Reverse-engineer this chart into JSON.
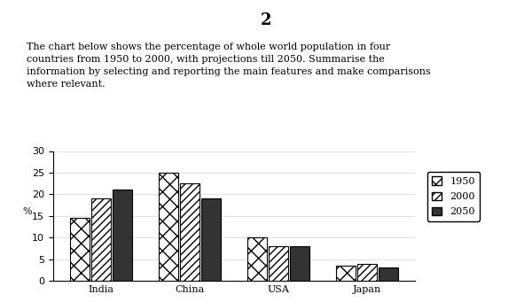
{
  "title": "2",
  "description": "The chart below shows the percentage of whole world population in four\ncountries from 1950 to 2000, with projections till 2050. Summarise the\ninformation by selecting and reporting the main features and make comparisons\nwhere relevant.",
  "categories": [
    "India",
    "China",
    "USA",
    "Japan"
  ],
  "series_1950": [
    14.5,
    25.0,
    10.0,
    3.5
  ],
  "series_2000": [
    19.0,
    22.5,
    8.0,
    4.0
  ],
  "series_2050": [
    21.0,
    19.0,
    8.0,
    3.0
  ],
  "ylabel": "% ",
  "ylim": [
    0,
    30
  ],
  "yticks": [
    0,
    5,
    10,
    15,
    20,
    25,
    30
  ],
  "legend_labels": [
    "1950",
    "2000",
    "2050"
  ],
  "background_color": "#ffffff",
  "bar_width": 0.22,
  "bar_gap": 0.02,
  "color_1950": "white",
  "color_2000": "white",
  "color_2050": "#333333",
  "hatch_1950": "xx",
  "hatch_2000": "////",
  "hatch_2050": ""
}
